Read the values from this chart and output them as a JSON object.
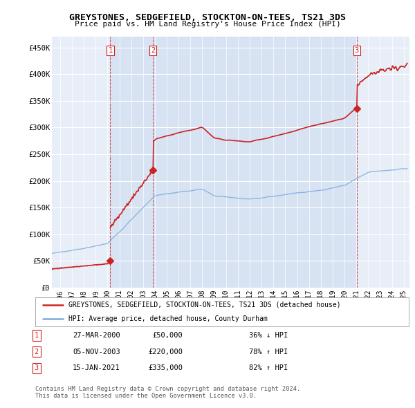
{
  "title": "GREYSTONES, SEDGEFIELD, STOCKTON-ON-TEES, TS21 3DS",
  "subtitle": "Price paid vs. HM Land Registry's House Price Index (HPI)",
  "legend_line1": "GREYSTONES, SEDGEFIELD, STOCKTON-ON-TEES, TS21 3DS (detached house)",
  "legend_line2": "HPI: Average price, detached house, County Durham",
  "footer": "Contains HM Land Registry data © Crown copyright and database right 2024.\nThis data is licensed under the Open Government Licence v3.0.",
  "transactions": [
    {
      "num": 1,
      "date": "27-MAR-2000",
      "price": 50000,
      "pct": "36%",
      "dir": "↓",
      "x_year": 2000.23
    },
    {
      "num": 2,
      "date": "05-NOV-2003",
      "price": 220000,
      "pct": "78%",
      "dir": "↑",
      "x_year": 2003.84
    },
    {
      "num": 3,
      "date": "15-JAN-2021",
      "price": 335000,
      "pct": "82%",
      "dir": "↑",
      "x_year": 2021.04
    }
  ],
  "red_color": "#cc2222",
  "blue_color": "#7aaddb",
  "ylim": [
    0,
    470000
  ],
  "xlim": [
    1995.3,
    2025.5
  ],
  "yticks": [
    0,
    50000,
    100000,
    150000,
    200000,
    250000,
    300000,
    350000,
    400000,
    450000
  ],
  "ytick_labels": [
    "£0",
    "£50K",
    "£100K",
    "£150K",
    "£200K",
    "£250K",
    "£300K",
    "£350K",
    "£400K",
    "£450K"
  ],
  "background_color": "#ffffff",
  "plot_bg_color": "#e8eef8",
  "shade_color": "#d0ddf0"
}
